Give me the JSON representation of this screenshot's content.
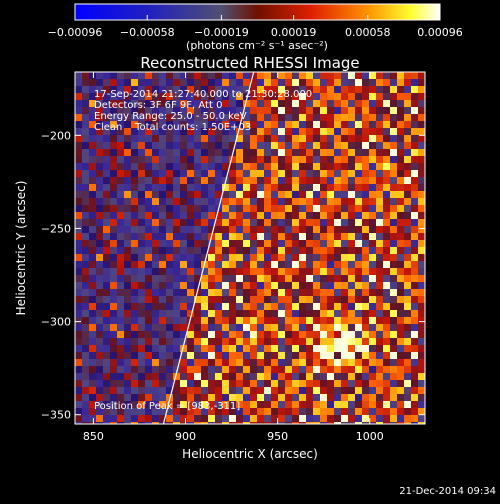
{
  "chart_data": {
    "type": "heatmap",
    "title": "Reconstructed RHESSI Image",
    "xlabel": "Heliocentric X (arcsec)",
    "ylabel": "Heliocentric Y (arcsec)",
    "xlim": [
      840,
      1030
    ],
    "ylim": [
      -355,
      -166
    ],
    "x_ticks": [
      850,
      900,
      950,
      1000
    ],
    "x_tick_labels": [
      "850",
      "900",
      "950",
      "1000"
    ],
    "y_ticks": [
      -200,
      -250,
      -300,
      -350
    ],
    "y_tick_labels": [
      "−200",
      "−250",
      "−300",
      "−350"
    ],
    "colorbar": {
      "ticks": [
        -0.00096,
        -0.00058,
        -0.00019,
        0.00019,
        0.00058,
        0.00096
      ],
      "tick_labels": [
        "−0.00096",
        "−0.00058",
        "−0.00019",
        "0.00019",
        "0.00058",
        "0.00096"
      ],
      "unit_label": "(photons cm⁻² s⁻¹ asec⁻²)",
      "min": -0.00096,
      "max": 0.00096
    },
    "info_lines": [
      "17-Sep-2014 21:27:40.000 to 21:30:28.000",
      "Detectors: 3F 6F 9F, Att 0",
      "Energy Range: 25.0 - 50.0 keV",
      "Clean    Total counts: 1.50E+03"
    ],
    "peak_label": "Position of Peak = [983,-311]",
    "peak": [
      983,
      -311
    ],
    "limb_line": [
      [
        888,
        -355
      ],
      [
        937,
        -166
      ]
    ],
    "grid": false
  },
  "footer": {
    "timestamp": "21-Dec-2014 09:34"
  }
}
